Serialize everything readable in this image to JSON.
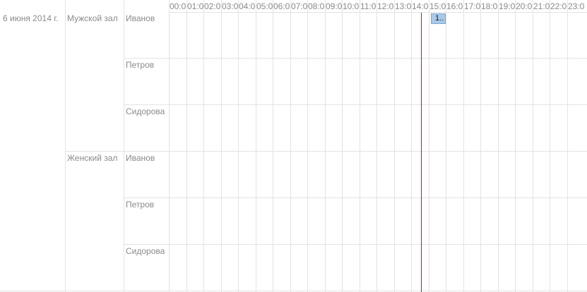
{
  "date": "6 июня 2014 г.",
  "hours": [
    "00:0",
    "01:0",
    "02:0",
    "03:0",
    "04:0",
    "05:0",
    "06:0",
    "07:0",
    "08:0",
    "09:0",
    "10:0",
    "11:0",
    "12:0",
    "13:0",
    "14:0",
    "15:0",
    "16:0",
    "17:0",
    "18:0",
    "19:0",
    "20:0",
    "21:0",
    "22:0",
    "23:0"
  ],
  "halls": [
    {
      "name": "Мужской зал",
      "staff": [
        "Иванов",
        "Петров",
        "Сидорова"
      ]
    },
    {
      "name": "Женский зал",
      "staff": [
        "Иванов",
        "Петров",
        "Сидорова"
      ]
    }
  ],
  "event": {
    "label": "1.."
  },
  "colors": {
    "now_line": "#b22222",
    "event_fill": "#a9c9e8",
    "grid": "#e3e3e3"
  }
}
